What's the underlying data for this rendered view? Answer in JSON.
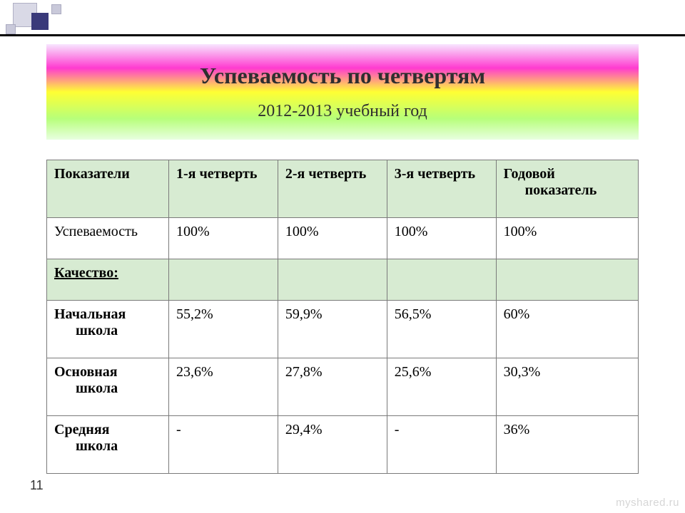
{
  "title": {
    "main": "Успеваемость по четвертям",
    "sub": "2012-2013 учебный год",
    "gradient_colors": [
      "#f7e6ff",
      "#ff3bd0",
      "#ffff33",
      "#b7ff7a",
      "#e8ffe0"
    ]
  },
  "table": {
    "header_bg": "#d7ebd2",
    "border_color": "#7a7a7a",
    "columns": [
      "Показатели",
      "1-я четверть",
      "2-я четверть",
      "3-я четверть",
      "Годовой показатель"
    ],
    "column_indent_last": "показатель",
    "rows": [
      {
        "label": "Успеваемость",
        "bold": false,
        "shade": false,
        "values": [
          "100%",
          "100%",
          "100%",
          "100%"
        ]
      },
      {
        "label": "Качество:",
        "bold": true,
        "underline": true,
        "shade": true,
        "values": [
          "",
          "",
          "",
          ""
        ]
      },
      {
        "label": "Начальная",
        "label_line2": "школа",
        "bold": true,
        "shade": false,
        "values": [
          "55,2%",
          "59,9%",
          "56,5%",
          "60%"
        ]
      },
      {
        "label": "Основная",
        "label_line2": "школа",
        "bold": true,
        "shade": false,
        "values": [
          "23,6%",
          "27,8%",
          "25,6%",
          "30,3%"
        ]
      },
      {
        "label": "Средняя",
        "label_line2": "школа",
        "bold": true,
        "shade": false,
        "values": [
          "-",
          "29,4%",
          "-",
          "36%"
        ]
      }
    ]
  },
  "page_number": "11",
  "watermark": "myshared.ru",
  "corner_colors": {
    "big_square": "#d9d9e6",
    "dark_square": "#3a3a7a",
    "small_square": "#c9c9da"
  }
}
